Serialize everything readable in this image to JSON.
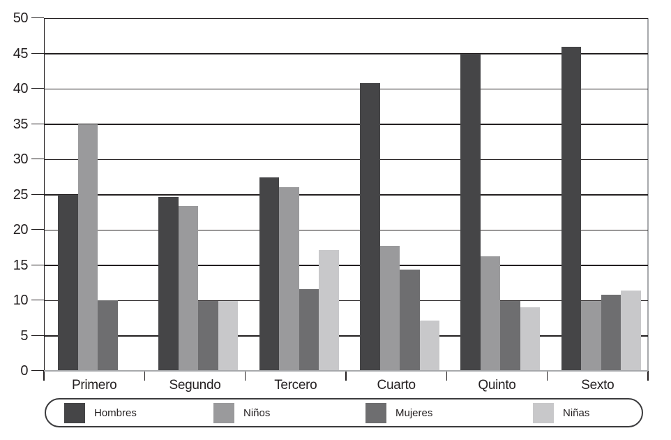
{
  "chart_data": {
    "type": "bar",
    "title": "",
    "xlabel": "",
    "ylabel": "",
    "categories": [
      "Primero",
      "Segundo",
      "Tercero",
      "Cuarto",
      "Quinto",
      "Sexto"
    ],
    "series": [
      {
        "name": "Hombres",
        "color": "#454547",
        "values": [
          25.0,
          24.7,
          27.4,
          40.8,
          45.0,
          45.9
        ]
      },
      {
        "name": "Niños",
        "color": "#9a9a9c",
        "values": [
          35.0,
          23.4,
          26.0,
          17.7,
          16.2,
          9.9
        ]
      },
      {
        "name": "Mujeres",
        "color": "#6e6e70",
        "values": [
          10.0,
          9.9,
          11.6,
          14.4,
          9.9,
          10.8
        ]
      },
      {
        "name": "Niñas",
        "color": "#c8c8ca",
        "values": [
          0.0,
          9.9,
          17.1,
          7.1,
          9.0,
          11.4
        ]
      }
    ],
    "ylim": [
      0,
      50
    ],
    "y_tick_step": 5,
    "y_tick_labels": [
      "0",
      "5",
      "10",
      "15",
      "20",
      "25",
      "30",
      "35",
      "40",
      "45",
      "50"
    ],
    "grid": "horizontal",
    "legend_position": "bottom",
    "legend_labels": [
      "Hombres",
      "Niños",
      "Mujeres",
      "Niñas"
    ]
  },
  "colors": {
    "background": "#ffffff",
    "gridline": "#231f20",
    "axis_line": "#231f20",
    "baseline": "#a7a9ac",
    "right_border": "#a7a9ac",
    "text": "#231f20",
    "legend_border": "#3b3b3d"
  }
}
